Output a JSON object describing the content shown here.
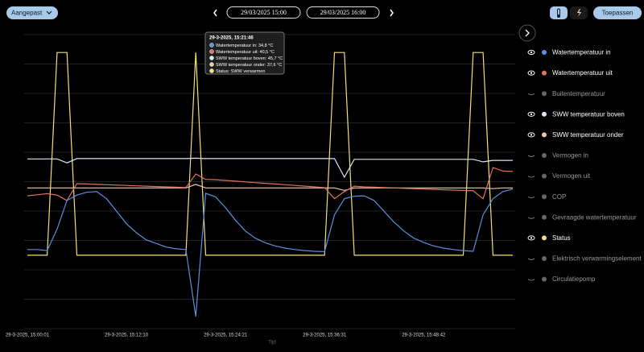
{
  "header": {
    "range_mode": "Aangepast",
    "start": "29/03/2025 15:00",
    "end": "29/03/2025 16:00",
    "apply": "Toepassen"
  },
  "tooltip": {
    "title": "29-3-2025, 15:21:46",
    "items": [
      "Watertemperatuur in: 34,8 °C",
      "Watertemperatuur uit: 40,5 °C",
      "SWW temperatuur boven: 45,7 °C",
      "SWW temperatuur onder: 37,6 °C",
      "Status: SWW verwarmen"
    ]
  },
  "chart_data": {
    "type": "line",
    "x_label": "Tijd",
    "categories": [
      "29-3-2025, 15:00:01",
      null,
      null,
      null,
      null,
      null,
      null,
      null,
      null,
      null,
      "29-3-2025, 15:12:10",
      null,
      null,
      null,
      null,
      null,
      null,
      null,
      null,
      null,
      "29-3-2025, 15:24:21",
      null,
      null,
      null,
      null,
      null,
      null,
      null,
      null,
      null,
      "29-3-2025, 15:36:31",
      null,
      null,
      null,
      null,
      null,
      null,
      null,
      null,
      null,
      "29-3-2025, 15:48:42",
      null,
      null,
      null,
      null,
      null,
      null,
      null,
      null,
      null
    ],
    "ylim": [
      0,
      81
    ],
    "y2lim": [
      -0.33,
      1.1
    ],
    "series": [
      {
        "name": "Watertemperatuur in",
        "color": "#5b8fe0",
        "values": [
          20.3,
          20.3,
          20.0,
          26,
          34,
          35.5,
          36.3,
          36.5,
          34.5,
          31,
          27.5,
          25,
          23,
          22,
          21,
          20.5,
          20.3,
          1.6,
          36,
          35,
          32,
          28.5,
          25.5,
          23.5,
          22.2,
          21.3,
          20.7,
          20.3,
          20,
          19.8,
          19.7,
          30,
          34.5,
          35.2,
          35.3,
          34,
          31,
          28,
          25.5,
          23.5,
          22.3,
          21.3,
          20.7,
          20.3,
          20,
          19.8,
          30,
          34.5,
          36.5,
          37.2
        ]
      },
      {
        "name": "Watertemperatuur uit",
        "color": "#e0735f",
        "values": [
          35.3,
          35.6,
          35.9,
          35.5,
          34,
          38.7,
          38.6,
          38.5,
          38.4,
          38.3,
          38.2,
          38.1,
          38,
          37.9,
          37.8,
          37.7,
          37.6,
          41.4,
          39.9,
          39.8,
          39.6,
          39.4,
          39.2,
          39,
          38.8,
          38.6,
          38.4,
          38.2,
          38,
          37.8,
          37.6,
          34.5,
          36.5,
          38,
          37.8,
          37.7,
          37.6,
          37.5,
          37.4,
          37.3,
          37.2,
          37.1,
          37,
          36.9,
          36.8,
          36.7,
          34.5,
          43.2,
          42.2,
          42.1
        ]
      },
      {
        "name": "SWW temperatuur boven",
        "color": "#d8e6f8",
        "values": [
          45.6,
          45.6,
          45.6,
          45.6,
          44.5,
          45.7,
          45.7,
          45.7,
          45.7,
          45.7,
          45.7,
          45.7,
          45.7,
          45.7,
          45.7,
          45.7,
          45.7,
          45.8,
          45.7,
          45.7,
          45.7,
          45.7,
          45.7,
          45.7,
          45.7,
          45.7,
          45.7,
          45.7,
          45.7,
          45.7,
          45.7,
          45.7,
          40.5,
          45.5,
          45.5,
          45.5,
          45.5,
          45.5,
          45.5,
          45.5,
          45.5,
          45.5,
          45.5,
          45.5,
          45.5,
          45.5,
          44.8,
          45.2,
          45.2,
          45.2
        ]
      },
      {
        "name": "SWW temperatuur onder",
        "color": "#f2c9a8",
        "values": [
          37.5,
          37.5,
          37.5,
          37.5,
          37.5,
          37.5,
          37.5,
          37.5,
          37.5,
          37.5,
          37.5,
          37.5,
          37.5,
          37.5,
          37.5,
          37.5,
          37.5,
          38.5,
          37.5,
          37.5,
          37.5,
          37.5,
          37.5,
          37.5,
          37.5,
          37.5,
          37.5,
          37.5,
          37.5,
          37.5,
          37.5,
          37.5,
          36.8,
          37.5,
          37.5,
          37.5,
          37.5,
          37.5,
          37.5,
          37.5,
          37.5,
          37.5,
          37.5,
          37.5,
          37.5,
          37.5,
          37.5,
          37.3,
          37.5,
          37.5
        ]
      },
      {
        "name": "Status",
        "color": "#f3e07a",
        "axis": "y2",
        "values": [
          0,
          0,
          0,
          1,
          1,
          0,
          0,
          0,
          0,
          0,
          0,
          0,
          0,
          0,
          0,
          0,
          0,
          1,
          0,
          0,
          0,
          0,
          0,
          0,
          0,
          0,
          0,
          0,
          0,
          0,
          0,
          1,
          1,
          0,
          0,
          0,
          0,
          0,
          0,
          0,
          0,
          0,
          0,
          0,
          0,
          1,
          1,
          0,
          0,
          0
        ]
      }
    ],
    "hidden_series": [
      "Buitentemperatuur",
      "Vermogen in",
      "Vermogen uit",
      "COP",
      "Gevraagde watertemperatuur",
      "Elektrisch verwarmingselement",
      "Circulatiepomp"
    ]
  }
}
